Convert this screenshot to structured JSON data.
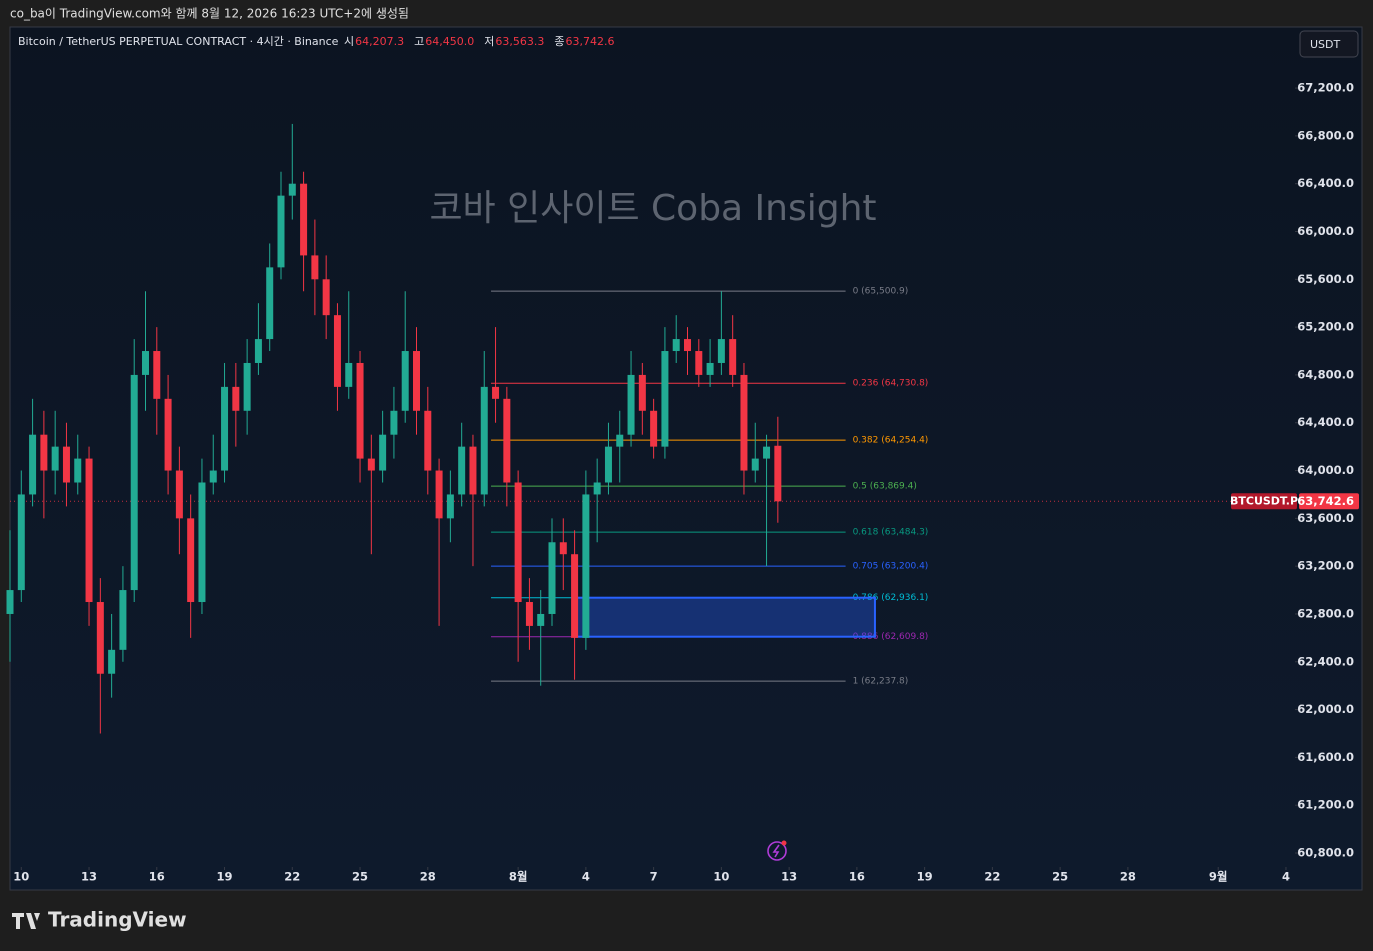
{
  "chart_data": {
    "type": "candlestick",
    "top_caption": "co_ba이 TradingView.com와 함께 8월 12, 2026 16:23 UTC+2에 생성됨",
    "title": "Bitcoin / TetherUS PERPETUAL CONTRACT · 4시간 · Binance",
    "ohlc_header": [
      {
        "label": "시",
        "value": "64,207.3"
      },
      {
        "label": "고",
        "value": "64,450.0"
      },
      {
        "label": "저",
        "value": "63,563.3"
      },
      {
        "label": "종",
        "value": "63,742.6"
      }
    ],
    "currency": "USDT",
    "watermark": "코바 인사이트 Coba Insight",
    "brand": "TradingView",
    "up_color": "#22ab94",
    "down_color": "#f23645",
    "xlim": [
      -0.5,
      56.4
    ],
    "ylim": [
      60683,
      67711
    ],
    "xticks": [
      {
        "value": 0,
        "label": "10"
      },
      {
        "value": 3,
        "label": "13"
      },
      {
        "value": 6,
        "label": "16"
      },
      {
        "value": 9,
        "label": "19"
      },
      {
        "value": 12,
        "label": "22"
      },
      {
        "value": 15,
        "label": "25"
      },
      {
        "value": 18,
        "label": "28"
      },
      {
        "value": 22,
        "label": "8월"
      },
      {
        "value": 25,
        "label": "4"
      },
      {
        "value": 28,
        "label": "7"
      },
      {
        "value": 31,
        "label": "10"
      },
      {
        "value": 34,
        "label": "13"
      },
      {
        "value": 37,
        "label": "16"
      },
      {
        "value": 40,
        "label": "19"
      },
      {
        "value": 43,
        "label": "22"
      },
      {
        "value": 46,
        "label": "25"
      },
      {
        "value": 49,
        "label": "28"
      },
      {
        "value": 53,
        "label": "9월"
      },
      {
        "value": 56,
        "label": "4"
      }
    ],
    "yticks": [
      {
        "value": 60800,
        "label": "60,800.0"
      },
      {
        "value": 61200,
        "label": "61,200.0"
      },
      {
        "value": 61600,
        "label": "61,600.0"
      },
      {
        "value": 62000,
        "label": "62,000.0"
      },
      {
        "value": 62400,
        "label": "62,400.0"
      },
      {
        "value": 62800,
        "label": "62,800.0"
      },
      {
        "value": 63200,
        "label": "63,200.0"
      },
      {
        "value": 63600,
        "label": "63,600.0"
      },
      {
        "value": 64000,
        "label": "64,000.0"
      },
      {
        "value": 64400,
        "label": "64,400.0"
      },
      {
        "value": 64800,
        "label": "64,800.0"
      },
      {
        "value": 65200,
        "label": "65,200.0"
      },
      {
        "value": 65600,
        "label": "65,600.0"
      },
      {
        "value": 66000,
        "label": "66,000.0"
      },
      {
        "value": 66400,
        "label": "66,400.0"
      },
      {
        "value": 66800,
        "label": "66,800.0"
      },
      {
        "value": 67200,
        "label": "67,200.0"
      }
    ],
    "x": [
      -0.5,
      0,
      0.5,
      1,
      1.5,
      2,
      2.5,
      3,
      3.5,
      4,
      4.5,
      5,
      5.5,
      6,
      6.5,
      7,
      7.5,
      8,
      8.5,
      9,
      9.5,
      10,
      10.5,
      11,
      11.5,
      12,
      12.5,
      13,
      13.5,
      14,
      14.5,
      15,
      15.5,
      16,
      16.5,
      17,
      17.5,
      18,
      18.5,
      19,
      19.5,
      20,
      20.5,
      21,
      21.5,
      22,
      22.5,
      23,
      23.5,
      24,
      24.5,
      25,
      25.5,
      26,
      26.5,
      27,
      27.5,
      28,
      28.5,
      29,
      29.5,
      30,
      30.5,
      31,
      31.5,
      32,
      32.5,
      33,
      33.5
    ],
    "candles": [
      [
        62800,
        63500,
        62400,
        63000
      ],
      [
        63000,
        64000,
        62900,
        63800
      ],
      [
        63800,
        64600,
        63700,
        64300
      ],
      [
        64300,
        64500,
        63600,
        64000
      ],
      [
        64000,
        64500,
        63800,
        64200
      ],
      [
        64200,
        64400,
        63700,
        63900
      ],
      [
        63900,
        64300,
        63800,
        64100
      ],
      [
        64100,
        64200,
        62700,
        62900
      ],
      [
        62900,
        63100,
        61800,
        62300
      ],
      [
        62300,
        62800,
        62100,
        62500
      ],
      [
        62500,
        63200,
        62400,
        63000
      ],
      [
        63000,
        65100,
        62900,
        64800
      ],
      [
        64800,
        65500,
        64500,
        65000
      ],
      [
        65000,
        65200,
        64300,
        64600
      ],
      [
        64600,
        64800,
        63800,
        64000
      ],
      [
        64000,
        64200,
        63300,
        63600
      ],
      [
        63600,
        63800,
        62600,
        62900
      ],
      [
        62900,
        64100,
        62800,
        63900
      ],
      [
        63900,
        64300,
        63800,
        64000
      ],
      [
        64000,
        64900,
        63900,
        64700
      ],
      [
        64700,
        64900,
        64200,
        64500
      ],
      [
        64500,
        65100,
        64300,
        64900
      ],
      [
        64900,
        65400,
        64800,
        65100
      ],
      [
        65100,
        65900,
        65000,
        65700
      ],
      [
        65700,
        66500,
        65600,
        66300
      ],
      [
        66300,
        66900,
        66100,
        66400
      ],
      [
        66400,
        66500,
        65500,
        65800
      ],
      [
        65800,
        66100,
        65300,
        65600
      ],
      [
        65600,
        65800,
        65100,
        65300
      ],
      [
        65300,
        65400,
        64500,
        64700
      ],
      [
        64700,
        65500,
        64600,
        64900
      ],
      [
        64900,
        65000,
        63900,
        64100
      ],
      [
        64100,
        64300,
        63300,
        64000
      ],
      [
        64000,
        64500,
        63900,
        64300
      ],
      [
        64300,
        64700,
        64100,
        64500
      ],
      [
        64500,
        65500,
        64400,
        65000
      ],
      [
        65000,
        65200,
        64300,
        64500
      ],
      [
        64500,
        64700,
        63800,
        64000
      ],
      [
        64000,
        64100,
        62700,
        63600
      ],
      [
        63600,
        64000,
        63400,
        63800
      ],
      [
        63800,
        64400,
        63700,
        64200
      ],
      [
        64200,
        64300,
        63200,
        63800
      ],
      [
        63800,
        65000,
        63700,
        64700
      ],
      [
        64700,
        65200,
        64400,
        64600
      ],
      [
        64600,
        64700,
        63700,
        63900
      ],
      [
        63900,
        64000,
        62400,
        62900
      ],
      [
        62900,
        63100,
        62500,
        62700
      ],
      [
        62700,
        63000,
        62200,
        62800
      ],
      [
        62800,
        63600,
        62700,
        63400
      ],
      [
        63400,
        63600,
        63000,
        63300
      ],
      [
        63300,
        63500,
        62250,
        62600
      ],
      [
        62600,
        64000,
        62500,
        63800
      ],
      [
        63800,
        64100,
        63400,
        63900
      ],
      [
        63900,
        64400,
        63800,
        64200
      ],
      [
        64200,
        64500,
        63900,
        64300
      ],
      [
        64300,
        65000,
        64200,
        64800
      ],
      [
        64800,
        64900,
        64300,
        64500
      ],
      [
        64500,
        64600,
        64100,
        64200
      ],
      [
        64200,
        65200,
        64100,
        65000
      ],
      [
        65000,
        65300,
        64900,
        65100
      ],
      [
        65100,
        65200,
        64800,
        65000
      ],
      [
        65000,
        65100,
        64700,
        64800
      ],
      [
        64800,
        65100,
        64700,
        64900
      ],
      [
        64900,
        65500,
        64800,
        65100
      ],
      [
        65100,
        65300,
        64700,
        64800
      ],
      [
        64800,
        64900,
        63800,
        64000
      ],
      [
        64000,
        64400,
        63900,
        64100
      ],
      [
        64100,
        64300,
        63200,
        64200
      ],
      [
        64207.3,
        64450,
        63563.3,
        63742.6
      ]
    ],
    "fib": {
      "x_range": [
        20.8,
        36.5
      ],
      "levels": [
        {
          "label": "0 (65,500.9)",
          "price": 65500.9,
          "color": "#787b86"
        },
        {
          "label": "0.236 (64,730.8)",
          "price": 64730.8,
          "color": "#f23645"
        },
        {
          "label": "0.382 (64,254.4)",
          "price": 64254.4,
          "color": "#ff9800"
        },
        {
          "label": "0.5 (63,869.4)",
          "price": 63869.4,
          "color": "#4caf50"
        },
        {
          "label": "0.618 (63,484.3)",
          "price": 63484.3,
          "color": "#089981"
        },
        {
          "label": "0.705 (63,200.4)",
          "price": 63200.4,
          "color": "#2962ff"
        },
        {
          "label": "0.786 (62,936.1)",
          "price": 62936.1,
          "color": "#00bcd4"
        },
        {
          "label": "0.886 (62,609.8)",
          "price": 62609.8,
          "color": "#9c27b0"
        },
        {
          "label": "1 (62,237.8)",
          "price": 62237.8,
          "color": "#787b86"
        }
      ]
    },
    "zone": {
      "x": [
        24.5,
        37.8
      ],
      "y": [
        62609.8,
        62936.1
      ],
      "color": "#2962ff"
    },
    "last_price": {
      "symbol": "BTCUSDT.P",
      "value": 63742.6,
      "label": "63,742.6"
    }
  }
}
